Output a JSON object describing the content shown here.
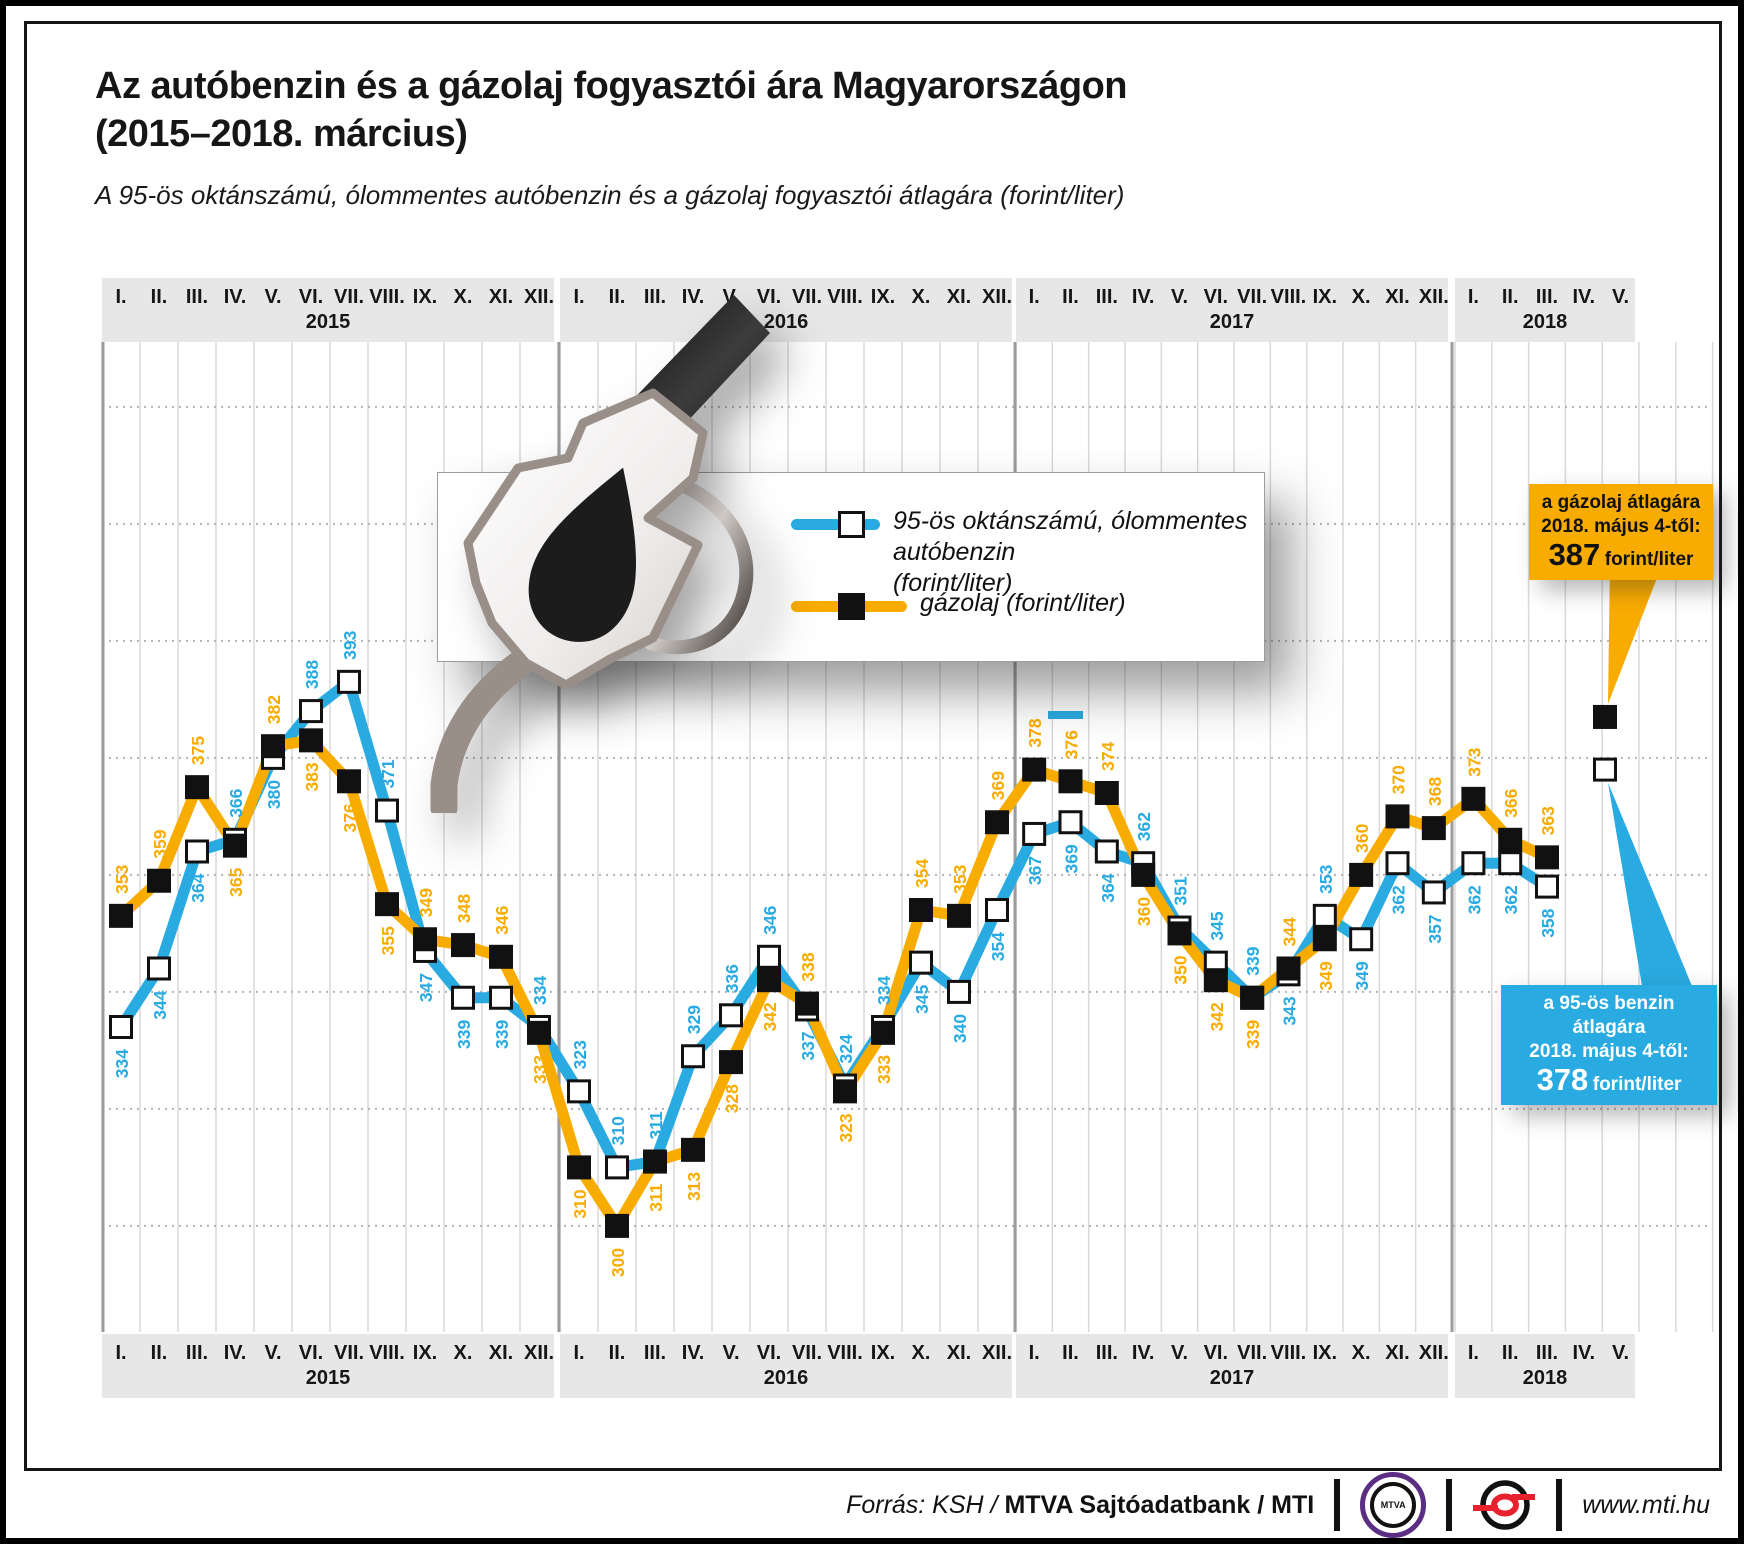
{
  "title": {
    "line1": "Az autóbenzin és a gázolaj fogyasztói ára Magyarországon",
    "line2": "(2015–2018. március)",
    "subtitle": "A 95-ös oktánszámú, ólommentes autóbenzin és a gázolaj fogyasztói átlagára (forint/liter)"
  },
  "legend": {
    "petrol_line1": "95-ös oktánszámú, ólommentes autóbenzin",
    "petrol_line2": "(forint/liter)",
    "diesel_label": "gázolaj (forint/liter)"
  },
  "callouts": {
    "diesel": {
      "line1": "a gázolaj átlagára",
      "line2": "2018. május 4-től:",
      "value": "387",
      "unit": "forint/liter"
    },
    "petrol": {
      "line1": "a 95-ös benzin átlagára",
      "line2": "2018. május 4-től:",
      "value": "378",
      "unit": "forint/liter"
    }
  },
  "footer": {
    "source_italic": "Forrás: KSH / ",
    "source_bold": "MTVA Sajtóadatbank / MTI",
    "mtva_logo_text": "MTVA",
    "url": "www.mti.hu"
  },
  "colors": {
    "petrol_blue": "#29abe2",
    "diesel_yellow": "#f9ac00",
    "strip_gray": "#e7e7e8",
    "grid_vertical": "#d9d9d9",
    "grid_dotted": "#b3b3b3",
    "year_divider": "#9c9c9c",
    "marker_stroke": "#111111"
  },
  "chart_data": {
    "type": "line",
    "title": "Az autóbenzin és a gázolaj fogyasztói ára Magyarországon (2015–2018. március)",
    "subtitle": "A 95-ös oktánszámú, ólommentes autóbenzin és a gázolaj fogyasztói átlagára (forint/liter)",
    "unit": "forint/liter",
    "ylim": [
      282,
      451
    ],
    "gridlines_y": [
      300,
      320,
      340,
      360,
      380,
      400,
      420,
      440
    ],
    "grid": "on",
    "legend_position": "center-top",
    "years": [
      {
        "label": "2015",
        "months": [
          "I.",
          "II.",
          "III.",
          "IV.",
          "V.",
          "VI.",
          "VII.",
          "VIII.",
          "IX.",
          "X.",
          "XI.",
          "XII."
        ]
      },
      {
        "label": "2016",
        "months": [
          "I.",
          "II.",
          "III.",
          "IV.",
          "V.",
          "VI.",
          "VII.",
          "VIII.",
          "IX.",
          "X.",
          "XI.",
          "XII."
        ]
      },
      {
        "label": "2017",
        "months": [
          "I.",
          "II.",
          "III.",
          "IV.",
          "V.",
          "VI.",
          "VII.",
          "VIII.",
          "IX.",
          "X.",
          "XI.",
          "XII."
        ]
      },
      {
        "label": "2018",
        "months": [
          "I.",
          "II.",
          "III.",
          "IV.",
          "V."
        ]
      }
    ],
    "series": [
      {
        "name": "95-ös oktánszámú, ólommentes autóbenzin (forint/liter)",
        "color": "#29abe2",
        "marker": "white-square",
        "values": [
          334,
          344,
          364,
          366,
          380,
          388,
          393,
          371,
          347,
          339,
          339,
          334,
          323,
          310,
          311,
          329,
          336,
          346,
          337,
          324,
          334,
          345,
          340,
          354,
          367,
          369,
          364,
          362,
          351,
          345,
          339,
          343,
          353,
          349,
          362,
          357,
          362,
          362,
          358
        ]
      },
      {
        "name": "gázolaj (forint/liter)",
        "color": "#f9ac00",
        "marker": "black-square",
        "values": [
          353,
          359,
          375,
          365,
          382,
          383,
          376,
          355,
          349,
          348,
          346,
          333,
          310,
          300,
          311,
          313,
          328,
          342,
          338,
          323,
          333,
          354,
          353,
          369,
          378,
          376,
          374,
          360,
          350,
          342,
          339,
          344,
          349,
          360,
          370,
          368,
          373,
          366,
          363
        ]
      }
    ],
    "special_points": [
      {
        "series": "gázolaj",
        "date_label": "2018. május 4-től",
        "value": 387
      },
      {
        "series": "95-ös benzin",
        "date_label": "2018. május 4-től",
        "value": 378
      }
    ]
  }
}
